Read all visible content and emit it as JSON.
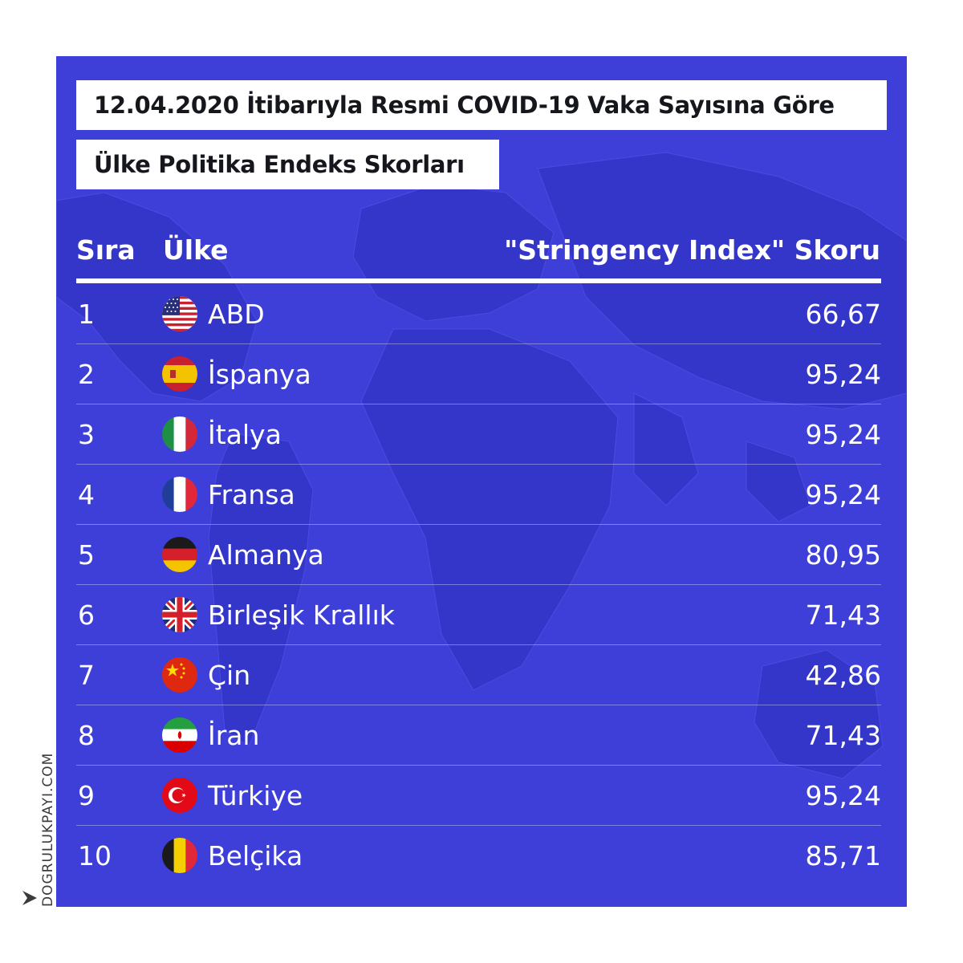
{
  "title_line1": "12.04.2020 İtibarıyla Resmi COVID-19 Vaka Sayısına Göre",
  "title_line2": "Ülke Politika Endeks Skorları",
  "colors": {
    "background": "#3d3fd8",
    "text": "#ffffff",
    "title_box": "#ffffff",
    "title_text": "#15171c"
  },
  "chart_data": {
    "type": "table",
    "columns": [
      "Sıra",
      "Ülke",
      "\"Stringency Index\" Skoru"
    ],
    "rows": [
      {
        "rank": "1",
        "country": "ABD",
        "flag": "usa-flag-icon",
        "score": "66,67"
      },
      {
        "rank": "2",
        "country": "İspanya",
        "flag": "spain-flag-icon",
        "score": "95,24"
      },
      {
        "rank": "3",
        "country": "İtalya",
        "flag": "italy-flag-icon",
        "score": "95,24"
      },
      {
        "rank": "4",
        "country": "Fransa",
        "flag": "france-flag-icon",
        "score": "95,24"
      },
      {
        "rank": "5",
        "country": "Almanya",
        "flag": "germany-flag-icon",
        "score": "80,95"
      },
      {
        "rank": "6",
        "country": "Birleşik Krallık",
        "flag": "uk-flag-icon",
        "score": "71,43"
      },
      {
        "rank": "7",
        "country": "Çin",
        "flag": "china-flag-icon",
        "score": "42,86"
      },
      {
        "rank": "8",
        "country": "İran",
        "flag": "iran-flag-icon",
        "score": "71,43"
      },
      {
        "rank": "9",
        "country": "Türkiye",
        "flag": "turkey-flag-icon",
        "score": "95,24"
      },
      {
        "rank": "10",
        "country": "Belçika",
        "flag": "belgium-flag-icon",
        "score": "85,71"
      }
    ]
  },
  "watermark": "DOGRULUKPAYI.COM"
}
